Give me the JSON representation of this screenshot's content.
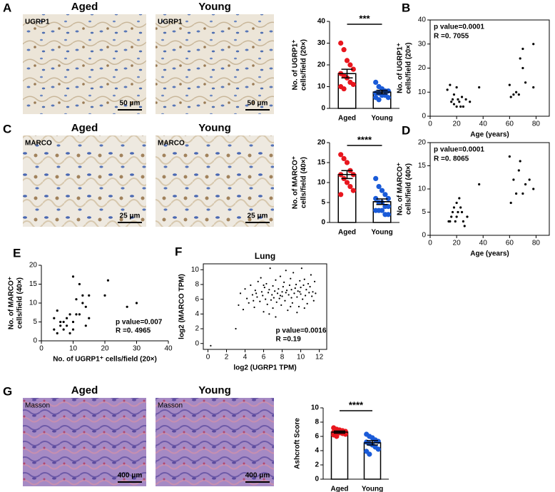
{
  "micrographs": [
    {
      "panel": "A",
      "images": [
        {
          "title": "Aged",
          "stain": "UGRP1",
          "scale": "50 μm"
        },
        {
          "title": "Young",
          "stain": "UGRP1",
          "scale": "50 μm"
        }
      ]
    },
    {
      "panel": "C",
      "images": [
        {
          "title": "Aged",
          "stain": "MARCO",
          "scale": "25 μm"
        },
        {
          "title": "Young",
          "stain": "MARCO",
          "scale": "25 μm"
        }
      ]
    },
    {
      "panel": "G",
      "images": [
        {
          "title": "Aged",
          "stain": "Masson",
          "scale": "400 μm"
        },
        {
          "title": "Young",
          "stain": "Masson",
          "scale": "400 μm"
        }
      ]
    }
  ],
  "chart_data": [
    {
      "type": "bar",
      "ylabel": [
        "No. of UGRP1⁺",
        "cells/field (20×)"
      ],
      "categories": [
        "Aged",
        "Young"
      ],
      "values": [
        16,
        7.5
      ],
      "errors": [
        2,
        0.8
      ],
      "points": [
        [
          30,
          27,
          22,
          20,
          18,
          16,
          15,
          14,
          12,
          11,
          10,
          9
        ],
        [
          12,
          10,
          9,
          8,
          8,
          7,
          7,
          6,
          6,
          5,
          5,
          4
        ]
      ],
      "colors": [
        "#e8161e",
        "#1a5bd8"
      ],
      "ylim": [
        0,
        40
      ],
      "yticks": [
        0,
        10,
        20,
        30,
        40
      ],
      "significance": "***"
    },
    {
      "type": "scatter",
      "panel": "B",
      "frame": true,
      "xlabel": "Age (years)",
      "ylabel": [
        "No. of UGRP1⁺",
        "cells/field (20×)"
      ],
      "annotations": [
        "p value=0.0001",
        "R =0. 7055"
      ],
      "x": [
        13,
        15,
        16,
        17,
        18,
        18,
        20,
        20,
        21,
        22,
        23,
        24,
        25,
        27,
        30,
        37,
        60,
        61,
        63,
        65,
        67,
        68,
        70,
        70,
        72,
        78,
        78
      ],
      "values": [
        11,
        13,
        6,
        7,
        5,
        9,
        12,
        4,
        7,
        6,
        4,
        8,
        4,
        7,
        6,
        12,
        13,
        8,
        9,
        10,
        9,
        24,
        20,
        28,
        14,
        30,
        12
      ],
      "xlim": [
        0,
        90
      ],
      "xticks": [
        0,
        20,
        40,
        60,
        80
      ],
      "ylim": [
        0,
        40
      ],
      "yticks": [
        0,
        10,
        20,
        30,
        40
      ]
    },
    {
      "type": "bar",
      "ylabel": [
        "No. of MARCO⁺",
        "cells/field (40×)"
      ],
      "categories": [
        "Aged",
        "Young"
      ],
      "values": [
        12,
        5.2
      ],
      "errors": [
        1,
        0.7
      ],
      "points": [
        [
          17,
          16,
          15,
          13,
          12,
          12,
          11,
          10,
          9,
          8,
          7
        ],
        [
          11,
          9,
          8,
          7,
          6,
          6,
          5,
          5,
          4,
          4,
          3,
          3,
          3,
          2,
          2
        ]
      ],
      "colors": [
        "#e8161e",
        "#1a5bd8"
      ],
      "ylim": [
        0,
        20
      ],
      "yticks": [
        0,
        5,
        10,
        15,
        20
      ],
      "significance": "****"
    },
    {
      "type": "scatter",
      "panel": "D",
      "frame": true,
      "xlabel": "Age (years)",
      "ylabel": [
        "No. of MARCO⁺",
        "cells/field (40×)"
      ],
      "annotations": [
        "p value=0.0001",
        "R =0. 8065"
      ],
      "x": [
        14,
        15,
        16,
        17,
        18,
        19,
        20,
        20,
        21,
        22,
        23,
        24,
        25,
        26,
        28,
        37,
        60,
        61,
        63,
        65,
        67,
        68,
        70,
        72,
        75,
        78
      ],
      "values": [
        3,
        3,
        4,
        5,
        6,
        3,
        7,
        4,
        5,
        8,
        6,
        5,
        3,
        2,
        4,
        11,
        17,
        7,
        12,
        9,
        14,
        16,
        9,
        11,
        12,
        10
      ],
      "xlim": [
        0,
        90
      ],
      "xticks": [
        0,
        20,
        40,
        60,
        80
      ],
      "ylim": [
        0,
        20
      ],
      "yticks": [
        0,
        5,
        10,
        15,
        20
      ]
    },
    {
      "type": "scatter",
      "panel": "E",
      "frame": false,
      "xlabel": "No. of UGRP1⁺ cells/field (20×)",
      "ylabel": [
        "No. of MARCO⁺",
        "cells/field (40×)"
      ],
      "annotations": [
        "p value=0.007",
        "R =0. 4965"
      ],
      "x": [
        4,
        4,
        5,
        5,
        6,
        6,
        7,
        7,
        8,
        8,
        9,
        9,
        10,
        10,
        10,
        11,
        11,
        12,
        12,
        13,
        13,
        14,
        14,
        15,
        15,
        20,
        21,
        27,
        30
      ],
      "values": [
        6,
        3,
        8,
        2,
        5,
        4,
        3,
        5,
        4,
        6,
        2,
        7,
        3,
        17,
        5,
        11,
        7,
        7,
        15,
        10,
        12,
        9,
        4,
        12,
        6,
        12,
        16,
        9,
        10
      ],
      "xlim": [
        0,
        40
      ],
      "xticks": [
        0,
        10,
        20,
        30,
        40
      ],
      "ylim": [
        0,
        20
      ],
      "yticks": [
        0,
        5,
        10,
        15,
        20
      ]
    },
    {
      "type": "scatter",
      "panel": "F",
      "frame": true,
      "title": "Lung",
      "xlabel": "log2 (UGRP1 TPM)",
      "ylabel": [
        "log2 (MARCO TPM)"
      ],
      "annotations": [
        "p value=0.0016",
        "R =0.19"
      ],
      "x": [
        3,
        0.3,
        3.3,
        3.5,
        3.8,
        4,
        4.2,
        4.4,
        4.6,
        4.8,
        5,
        5.1,
        5.3,
        5.4,
        5.6,
        5.8,
        5.9,
        6,
        6.1,
        6.2,
        6.3,
        6.4,
        6.5,
        6.6,
        6.7,
        6.8,
        6.9,
        7,
        7,
        7.1,
        7.2,
        7.3,
        7.4,
        7.5,
        7.6,
        7.7,
        7.8,
        7.9,
        8,
        8,
        8.1,
        8.2,
        8.3,
        8.4,
        8.5,
        8.6,
        8.7,
        8.8,
        8.9,
        9,
        9,
        9.1,
        9.2,
        9.3,
        9.4,
        9.5,
        9.6,
        9.7,
        9.8,
        9.9,
        10,
        10,
        10.1,
        10.2,
        10.3,
        10.4,
        10.5,
        10.6,
        10.7,
        10.8,
        10.9,
        11,
        11.1,
        11.2,
        11.3,
        11.4,
        11.5,
        11.6,
        4.9,
        5.7,
        6.6,
        7.3,
        8.4,
        9.6,
        10.4,
        5.2,
        6,
        7.8,
        8.9,
        9.9
      ],
      "values": [
        2,
        -0.3,
        5.2,
        6.8,
        4.6,
        7.4,
        6.1,
        5.5,
        7.9,
        6.6,
        4.9,
        7.2,
        6.3,
        8.4,
        5.7,
        7,
        6.5,
        4.3,
        7.6,
        6,
        8.1,
        5.3,
        6.9,
        7.3,
        10.2,
        5.9,
        6.6,
        7.8,
        4.8,
        6.2,
        7.1,
        8.6,
        5.6,
        6.8,
        7.4,
        6.1,
        9.1,
        5.2,
        7,
        6.4,
        7.7,
        8.3,
        5.8,
        6.9,
        7.2,
        4.5,
        6.6,
        7.9,
        8.8,
        6.2,
        7.3,
        5.5,
        9.6,
        6.8,
        7.5,
        8,
        6.3,
        7.1,
        5,
        8.5,
        6.7,
        7.6,
        10.2,
        6,
        7.9,
        8.7,
        6.5,
        7.3,
        5.4,
        8.1,
        6.9,
        7.7,
        9.3,
        6.4,
        7,
        5.8,
        8.4,
        6.8,
        5.8,
        8.9,
        4,
        3.6,
        9.9,
        4.2,
        4.8,
        6.8,
        7.9,
        6.5,
        5,
        7
      ],
      "xlim": [
        -0.5,
        12.8
      ],
      "xticks": [
        0,
        2,
        4,
        6,
        8,
        10,
        12
      ],
      "ylim": [
        -0.8,
        10.8
      ],
      "yticks": [
        0,
        2,
        4,
        6,
        8,
        10
      ]
    },
    {
      "type": "bar",
      "ylabel": [
        "Ashcroft Score"
      ],
      "categories": [
        "Aged",
        "Young"
      ],
      "values": [
        6.6,
        5.1
      ],
      "errors": [
        0.15,
        0.3
      ],
      "points": [
        [
          7.2,
          7,
          6.9,
          6.8,
          6.7,
          6.6,
          6.5,
          6.5,
          6.4,
          6.3,
          6.2,
          6
        ],
        [
          6.3,
          6,
          5.8,
          5.5,
          5.3,
          5.2,
          5,
          4.8,
          4.5,
          4.2,
          3.9,
          3.5
        ]
      ],
      "colors": [
        "#e8161e",
        "#1a5bd8"
      ],
      "ylim": [
        0,
        10
      ],
      "yticks": [
        0,
        2,
        4,
        6,
        8,
        10
      ],
      "significance": "****"
    }
  ]
}
